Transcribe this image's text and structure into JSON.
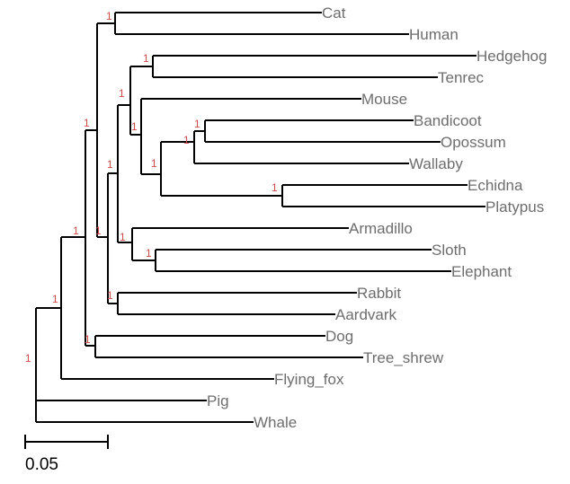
{
  "tree": {
    "leaves": [
      "Cat",
      "Human",
      "Hedgehog",
      "Tenrec",
      "Mouse",
      "Bandicoot",
      "Opossum",
      "Wallaby",
      "Echidna",
      "Platypus",
      "Armadillo",
      "Sloth",
      "Elephant",
      "Rabbit",
      "Aardvark",
      "Dog",
      "Tree_shrew",
      "Flying_fox",
      "Pig",
      "Whale"
    ],
    "support_value": "1",
    "scale_label": "0.05"
  }
}
